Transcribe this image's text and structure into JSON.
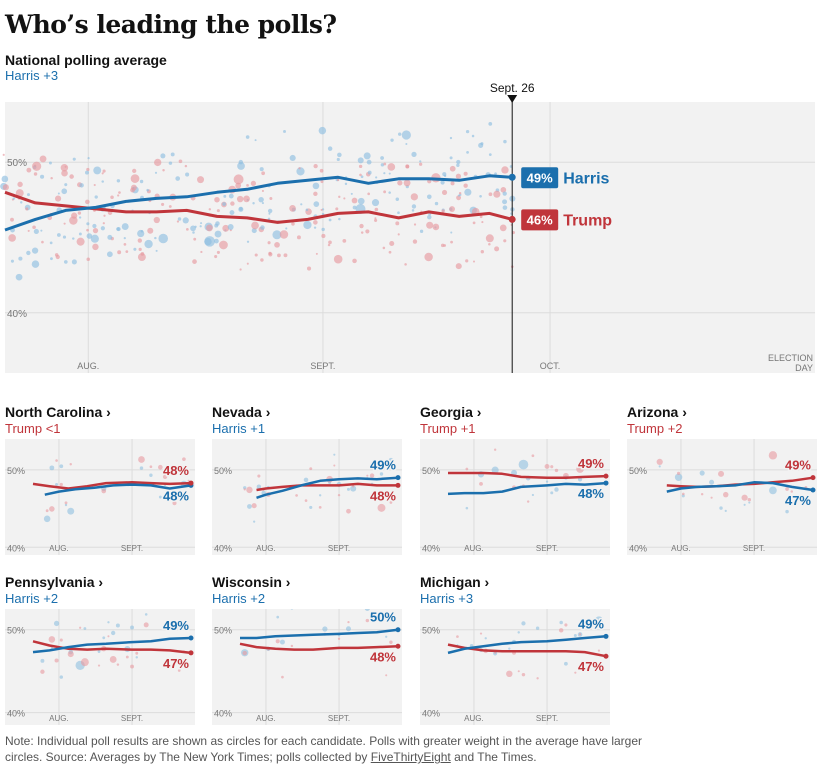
{
  "title": "Who’s leading the polls?",
  "national": {
    "subtitle": "National polling average",
    "lead": "Harris +3",
    "lead_party": "harris",
    "marker_label": "Sept. 26",
    "x_labels": [
      "AUG.",
      "SEPT.",
      "OCT."
    ],
    "election_label": [
      "ELECTION",
      "DAY"
    ],
    "y_labels": [
      "50%",
      "40%"
    ],
    "harris_label": "Harris",
    "trump_label": "Trump",
    "harris_value": "49%",
    "trump_value": "46%"
  },
  "states": [
    {
      "name": "North Carolina ›",
      "lead": "Trump <1",
      "lead_party": "trump",
      "harris_label": "48%",
      "trump_label": "48%"
    },
    {
      "name": "Nevada ›",
      "lead": "Harris +1",
      "lead_party": "harris",
      "harris_label": "49%",
      "trump_label": "48%"
    },
    {
      "name": "Georgia ›",
      "lead": "Trump +1",
      "lead_party": "trump",
      "harris_label": "48%",
      "trump_label": "49%"
    },
    {
      "name": "Arizona ›",
      "lead": "Trump +2",
      "lead_party": "trump",
      "harris_label": "47%",
      "trump_label": "49%"
    },
    {
      "name": "Pennsylvania ›",
      "lead": "Harris +2",
      "lead_party": "harris",
      "harris_label": "49%",
      "trump_label": "47%"
    },
    {
      "name": "Wisconsin ›",
      "lead": "Harris +2",
      "lead_party": "harris",
      "harris_label": "50%",
      "trump_label": "48%"
    },
    {
      "name": "Michigan ›",
      "lead": "Harris +3",
      "lead_party": "harris",
      "harris_label": "49%",
      "trump_label": "47%"
    }
  ],
  "state_axis": {
    "x_labels": [
      "AUG.",
      "SEPT."
    ],
    "y_labels": [
      "50%",
      "40%"
    ]
  },
  "note": {
    "text_before": "Note: Individual poll results are shown as circles for each candidate. Polls with greater weight in the average have larger circles. Source: Averages by The New York Times; polls collected by ",
    "link": "FiveThirtyEight",
    "text_after": " and The Times."
  },
  "colors": {
    "harris": "#1b6fad",
    "trump": "#c0353b",
    "harris_dot": "#8fbfe0",
    "trump_dot": "#e79aa0",
    "panel": "#f2f2f2"
  },
  "chart_data": [
    {
      "type": "line",
      "title": "National polling average",
      "x_axis": "date",
      "x_range": [
        "2024-07-21",
        "2024-11-05"
      ],
      "x_ticks": [
        "2024-08-01",
        "2024-09-01",
        "2024-10-01",
        "2024-11-05"
      ],
      "x_tick_labels": [
        "AUG.",
        "SEPT.",
        "OCT.",
        "ELECTION DAY"
      ],
      "ylim": [
        36,
        54
      ],
      "y_ticks": [
        50,
        40
      ],
      "as_of": "2024-09-26",
      "series": [
        {
          "name": "Harris",
          "x": [
            "2024-07-21",
            "2024-07-25",
            "2024-07-29",
            "2024-08-02",
            "2024-08-06",
            "2024-08-10",
            "2024-08-14",
            "2024-08-18",
            "2024-08-22",
            "2024-08-26",
            "2024-08-30",
            "2024-09-03",
            "2024-09-07",
            "2024-09-11",
            "2024-09-15",
            "2024-09-19",
            "2024-09-23",
            "2024-09-26"
          ],
          "values": [
            45.5,
            46.2,
            46.8,
            47.0,
            47.4,
            47.6,
            47.7,
            48.0,
            48.2,
            48.6,
            48.8,
            49.0,
            48.6,
            48.9,
            48.9,
            48.8,
            49.1,
            49.0
          ],
          "end_label": "49%"
        },
        {
          "name": "Trump",
          "x": [
            "2024-07-21",
            "2024-07-25",
            "2024-07-29",
            "2024-08-02",
            "2024-08-06",
            "2024-08-10",
            "2024-08-14",
            "2024-08-18",
            "2024-08-22",
            "2024-08-26",
            "2024-08-30",
            "2024-09-03",
            "2024-09-07",
            "2024-09-11",
            "2024-09-15",
            "2024-09-19",
            "2024-09-23",
            "2024-09-26"
          ],
          "values": [
            48.0,
            47.3,
            47.1,
            46.9,
            46.7,
            46.7,
            46.8,
            46.4,
            46.3,
            46.0,
            46.2,
            46.6,
            46.7,
            46.3,
            46.7,
            46.4,
            46.6,
            46.2
          ],
          "end_label": "46%"
        }
      ]
    },
    {
      "type": "line",
      "title": "North Carolina",
      "x_range": [
        "2024-07-21",
        "2024-09-26"
      ],
      "ylim": [
        39,
        54
      ],
      "y_ticks": [
        50,
        40
      ],
      "series": [
        {
          "name": "Harris",
          "x": [
            "2024-07-26",
            "2024-08-01",
            "2024-08-08",
            "2024-08-16",
            "2024-08-24",
            "2024-09-01",
            "2024-09-09",
            "2024-09-17",
            "2024-09-26"
          ],
          "values": [
            46.8,
            47.2,
            47.5,
            47.7,
            48.0,
            48.1,
            48.0,
            47.6,
            48.0
          ]
        },
        {
          "name": "Trump",
          "x": [
            "2024-07-21",
            "2024-07-28",
            "2024-08-05",
            "2024-08-13",
            "2024-08-21",
            "2024-09-01",
            "2024-09-09",
            "2024-09-17",
            "2024-09-26"
          ],
          "values": [
            48.2,
            47.9,
            47.6,
            47.9,
            48.3,
            48.4,
            48.3,
            48.2,
            48.3
          ]
        }
      ]
    },
    {
      "type": "line",
      "title": "Nevada",
      "x_range": [
        "2024-07-21",
        "2024-09-26"
      ],
      "ylim": [
        39,
        54
      ],
      "y_ticks": [
        50,
        40
      ],
      "series": [
        {
          "name": "Harris",
          "x": [
            "2024-07-28",
            "2024-08-01",
            "2024-08-08",
            "2024-08-16",
            "2024-08-24",
            "2024-09-01",
            "2024-09-09",
            "2024-09-17",
            "2024-09-26"
          ],
          "values": [
            46.4,
            46.8,
            47.3,
            48.0,
            48.6,
            48.8,
            48.9,
            48.8,
            49.0
          ]
        },
        {
          "name": "Trump",
          "x": [
            "2024-07-28",
            "2024-08-01",
            "2024-08-08",
            "2024-08-16",
            "2024-08-24",
            "2024-09-01",
            "2024-09-09",
            "2024-09-17",
            "2024-09-26"
          ],
          "values": [
            47.4,
            47.6,
            47.8,
            48.0,
            48.0,
            48.0,
            48.2,
            48.0,
            48.0
          ]
        }
      ]
    },
    {
      "type": "line",
      "title": "Georgia",
      "x_range": [
        "2024-07-21",
        "2024-09-26"
      ],
      "ylim": [
        39,
        54
      ],
      "y_ticks": [
        50,
        40
      ],
      "series": [
        {
          "name": "Harris",
          "x": [
            "2024-07-21",
            "2024-07-28",
            "2024-08-05",
            "2024-08-13",
            "2024-08-21",
            "2024-09-01",
            "2024-09-09",
            "2024-09-17",
            "2024-09-26"
          ],
          "values": [
            46.9,
            47.0,
            47.0,
            47.2,
            47.8,
            48.0,
            48.2,
            48.1,
            48.3
          ]
        },
        {
          "name": "Trump",
          "x": [
            "2024-07-21",
            "2024-07-28",
            "2024-08-05",
            "2024-08-13",
            "2024-08-21",
            "2024-09-01",
            "2024-09-09",
            "2024-09-17",
            "2024-09-26"
          ],
          "values": [
            49.6,
            49.6,
            49.6,
            49.5,
            49.1,
            49.0,
            49.0,
            49.1,
            49.2
          ]
        }
      ]
    },
    {
      "type": "line",
      "title": "Arizona",
      "x_range": [
        "2024-07-21",
        "2024-09-26"
      ],
      "ylim": [
        39,
        54
      ],
      "y_ticks": [
        50,
        40
      ],
      "series": [
        {
          "name": "Harris",
          "x": [
            "2024-07-26",
            "2024-08-01",
            "2024-08-08",
            "2024-08-16",
            "2024-08-24",
            "2024-09-01",
            "2024-09-09",
            "2024-09-17",
            "2024-09-26"
          ],
          "values": [
            47.2,
            47.6,
            47.8,
            47.9,
            48.0,
            48.4,
            48.3,
            47.8,
            47.4
          ]
        },
        {
          "name": "Trump",
          "x": [
            "2024-07-26",
            "2024-08-01",
            "2024-08-08",
            "2024-08-16",
            "2024-08-24",
            "2024-09-01",
            "2024-09-09",
            "2024-09-17",
            "2024-09-26"
          ],
          "values": [
            48.0,
            47.9,
            47.8,
            47.9,
            48.1,
            48.2,
            48.4,
            48.6,
            49.0
          ]
        }
      ]
    },
    {
      "type": "line",
      "title": "Pennsylvania",
      "x_range": [
        "2024-07-21",
        "2024-09-26"
      ],
      "ylim": [
        38.5,
        52.5
      ],
      "y_ticks": [
        50,
        40
      ],
      "series": [
        {
          "name": "Harris",
          "x": [
            "2024-07-21",
            "2024-07-28",
            "2024-08-05",
            "2024-08-13",
            "2024-08-21",
            "2024-09-01",
            "2024-09-09",
            "2024-09-17",
            "2024-09-26"
          ],
          "values": [
            47.3,
            47.5,
            47.9,
            48.2,
            48.3,
            48.5,
            48.6,
            48.9,
            49.0
          ]
        },
        {
          "name": "Trump",
          "x": [
            "2024-07-21",
            "2024-07-28",
            "2024-08-05",
            "2024-08-13",
            "2024-08-21",
            "2024-09-01",
            "2024-09-09",
            "2024-09-17",
            "2024-09-26"
          ],
          "values": [
            48.6,
            48.1,
            47.7,
            47.6,
            47.7,
            47.6,
            47.6,
            47.5,
            47.2
          ]
        }
      ]
    },
    {
      "type": "line",
      "title": "Wisconsin",
      "x_range": [
        "2024-07-21",
        "2024-09-26"
      ],
      "ylim": [
        38.5,
        52.5
      ],
      "y_ticks": [
        50,
        40
      ],
      "series": [
        {
          "name": "Harris",
          "x": [
            "2024-07-21",
            "2024-07-28",
            "2024-08-05",
            "2024-08-13",
            "2024-08-21",
            "2024-09-01",
            "2024-09-09",
            "2024-09-17",
            "2024-09-26"
          ],
          "values": [
            49.0,
            49.0,
            49.2,
            49.3,
            49.4,
            49.5,
            49.6,
            49.7,
            50.0
          ]
        },
        {
          "name": "Trump",
          "x": [
            "2024-07-21",
            "2024-07-28",
            "2024-08-05",
            "2024-08-13",
            "2024-08-21",
            "2024-09-01",
            "2024-09-09",
            "2024-09-17",
            "2024-09-26"
          ],
          "values": [
            48.3,
            47.9,
            47.7,
            47.6,
            47.6,
            47.8,
            47.8,
            47.9,
            48.0
          ]
        }
      ]
    },
    {
      "type": "line",
      "title": "Michigan",
      "x_range": [
        "2024-07-21",
        "2024-09-26"
      ],
      "ylim": [
        38.5,
        52.5
      ],
      "y_ticks": [
        50,
        40
      ],
      "series": [
        {
          "name": "Harris",
          "x": [
            "2024-07-21",
            "2024-07-28",
            "2024-08-05",
            "2024-08-13",
            "2024-08-21",
            "2024-09-01",
            "2024-09-09",
            "2024-09-17",
            "2024-09-26"
          ],
          "values": [
            47.2,
            47.7,
            48.0,
            48.3,
            48.5,
            48.6,
            48.8,
            49.0,
            49.2
          ]
        },
        {
          "name": "Trump",
          "x": [
            "2024-07-21",
            "2024-07-28",
            "2024-08-05",
            "2024-08-13",
            "2024-08-21",
            "2024-09-01",
            "2024-09-09",
            "2024-09-17",
            "2024-09-26"
          ],
          "values": [
            48.2,
            47.8,
            47.5,
            47.4,
            47.4,
            47.4,
            47.4,
            47.3,
            46.8
          ]
        }
      ]
    }
  ]
}
